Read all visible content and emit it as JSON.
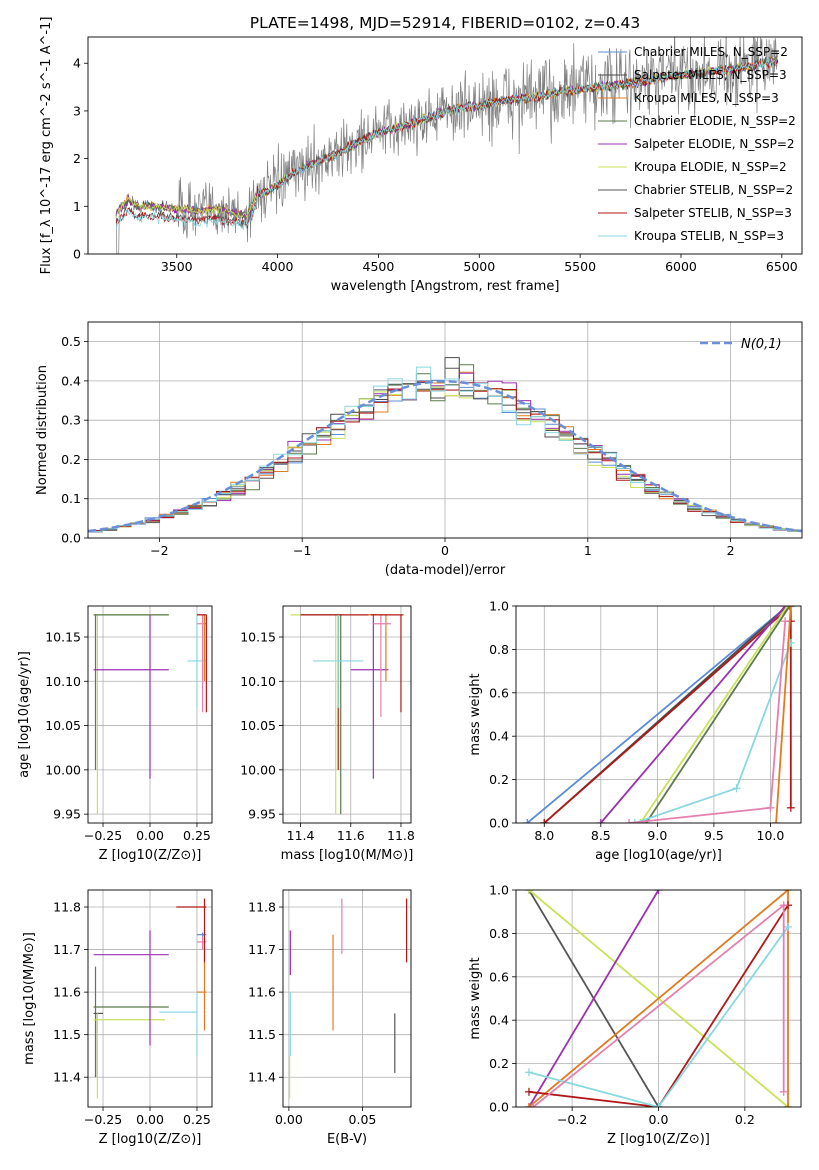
{
  "figure_title": "PLATE=1498, MJD=52914, FIBERID=0102, z=0.43",
  "colors": {
    "Chabrier MILES": "#5b8cd6",
    "Salpeter MILES": "#4a4a4a",
    "Kroupa MILES": "#e07b22",
    "Chabrier ELODIE": "#5a7a4a",
    "Salpeter ELODIE": "#9b30b0",
    "Kroupa ELODIE": "#c8e35a",
    "Chabrier STELIB": "#555555",
    "Salpeter STELIB": "#b01818",
    "Kroupa STELIB": "#88d8e0",
    "extra_pink": "#e57fb0",
    "grid": "#b0b0b0",
    "data": "#808080"
  },
  "chart_data": [
    {
      "id": "spectrum",
      "type": "line",
      "xlabel": "wavelength [Angstrom, rest frame]",
      "ylabel": "Flux [f_λ 10^-17 erg cm^-2 s^-1 A^-1]",
      "xlim": [
        3060,
        6600
      ],
      "ylim": [
        0,
        4.55
      ],
      "xticks": [
        3500,
        4000,
        4500,
        5000,
        5500,
        6000,
        6500
      ],
      "yticks": [
        0,
        1,
        2,
        3,
        4
      ],
      "grid": false,
      "legend_position": "top-right",
      "series": [
        {
          "name": "Chabrier MILES, N_SSP=2",
          "model": "Chabrier MILES"
        },
        {
          "name": "Salpeter MILES, N_SSP=3",
          "model": "Salpeter MILES"
        },
        {
          "name": "Kroupa MILES, N_SSP=3",
          "model": "Kroupa MILES"
        },
        {
          "name": "Chabrier ELODIE, N_SSP=2",
          "model": "Chabrier ELODIE"
        },
        {
          "name": "Salpeter ELODIE, N_SSP=2",
          "model": "Salpeter ELODIE"
        },
        {
          "name": "Kroupa ELODIE, N_SSP=2",
          "model": "Kroupa ELODIE"
        },
        {
          "name": "Chabrier STELIB, N_SSP=2",
          "model": "Chabrier STELIB"
        },
        {
          "name": "Salpeter STELIB, N_SSP=3",
          "model": "Salpeter STELIB"
        },
        {
          "name": "Kroupa STELIB, N_SSP=3",
          "model": "Kroupa STELIB"
        }
      ],
      "continuum": {
        "x": [
          3200,
          3260,
          3300,
          3400,
          3500,
          3600,
          3700,
          3800,
          3850,
          3900,
          3950,
          4000,
          4100,
          4200,
          4300,
          4400,
          4500,
          4600,
          4700,
          4800,
          4900,
          5000,
          5100,
          5200,
          5300,
          5400,
          5500,
          5600,
          5700,
          5800,
          5900,
          6000,
          6100,
          6200,
          6300,
          6400,
          6480
        ],
        "y": [
          0.85,
          1.15,
          1.0,
          1.0,
          0.95,
          0.9,
          0.95,
          0.85,
          0.8,
          1.3,
          1.3,
          1.45,
          1.75,
          1.95,
          2.1,
          2.35,
          2.55,
          2.65,
          2.8,
          2.95,
          3.05,
          3.1,
          3.2,
          3.25,
          3.3,
          3.4,
          3.45,
          3.5,
          3.55,
          3.6,
          3.7,
          3.75,
          3.8,
          3.85,
          3.9,
          4.0,
          4.05
        ]
      },
      "data_noise_ranges": [
        {
          "x": [
            3200,
            3500
          ],
          "amp": 0.15
        },
        {
          "x": [
            3500,
            4000
          ],
          "amp": 0.6
        },
        {
          "x": [
            4000,
            5000
          ],
          "amp": 0.6
        },
        {
          "x": [
            5000,
            6500
          ],
          "amp": 0.8
        }
      ]
    },
    {
      "id": "residuals",
      "type": "histogram",
      "xlabel": "(data-model)/error",
      "ylabel": "Normed distribution",
      "xlim": [
        -2.5,
        2.5
      ],
      "ylim": [
        0,
        0.55
      ],
      "xticks": [
        -2,
        -1,
        0,
        1,
        2
      ],
      "yticks": [
        0.0,
        0.1,
        0.2,
        0.3,
        0.4,
        0.5
      ],
      "grid": true,
      "legend_position": "top-right",
      "legend": [
        "N(0,1)"
      ],
      "reference_curve": "standard normal pdf, dashed",
      "bins": {
        "start": -2.5,
        "width": 0.1,
        "count": 50
      },
      "profile_values": [
        0.018,
        0.022,
        0.028,
        0.036,
        0.045,
        0.055,
        0.066,
        0.079,
        0.093,
        0.109,
        0.127,
        0.147,
        0.168,
        0.19,
        0.213,
        0.237,
        0.261,
        0.286,
        0.31,
        0.332,
        0.352,
        0.369,
        0.383,
        0.393,
        0.399,
        0.399,
        0.393,
        0.383,
        0.369,
        0.352,
        0.332,
        0.31,
        0.286,
        0.261,
        0.237,
        0.213,
        0.19,
        0.168,
        0.147,
        0.127,
        0.109,
        0.093,
        0.079,
        0.066,
        0.055,
        0.045,
        0.036,
        0.028,
        0.022,
        0.018
      ]
    },
    {
      "id": "age_vs_Z",
      "type": "scatter",
      "xlabel": "Z [log10(Z/Z⊙)]",
      "ylabel": "age [log10(age/yr)]",
      "xlim": [
        -0.33,
        0.33
      ],
      "ylim": [
        9.94,
        10.185
      ],
      "xticks": [
        -0.25,
        0.0,
        0.25
      ],
      "yticks": [
        9.95,
        10.0,
        10.05,
        10.1,
        10.15
      ],
      "grid": true,
      "errorbars": [
        {
          "model": "Kroupa ELODIE",
          "x": -0.28,
          "y": 10.175,
          "xl": -0.3,
          "xh": 0.1,
          "yl": 9.95,
          "yh": 10.175
        },
        {
          "model": "Chabrier ELODIE",
          "x": -0.29,
          "y": 10.175,
          "xl": -0.3,
          "xh": 0.1,
          "yl": 10.0,
          "yh": 10.175
        },
        {
          "model": "Salpeter ELODIE",
          "x": 0.0,
          "y": 10.113,
          "xl": -0.3,
          "xh": 0.1,
          "yl": 9.99,
          "yh": 10.175
        },
        {
          "model": "Kroupa STELIB",
          "x": 0.25,
          "y": 10.123,
          "xl": 0.2,
          "xh": 0.3,
          "yl": 10.07,
          "yh": 10.175
        },
        {
          "model": "extra_pink",
          "x": 0.28,
          "y": 10.165,
          "xl": 0.25,
          "xh": 0.3,
          "yl": 10.065,
          "yh": 10.175
        },
        {
          "model": "Kroupa MILES",
          "x": 0.29,
          "y": 10.175,
          "xl": 0.25,
          "xh": 0.3,
          "yl": 10.1,
          "yh": 10.175
        },
        {
          "model": "Salpeter STELIB",
          "x": 0.3,
          "y": 10.175,
          "xl": 0.25,
          "xh": 0.3,
          "yl": 10.065,
          "yh": 10.175
        }
      ]
    },
    {
      "id": "age_vs_mass",
      "type": "scatter",
      "xlabel": "mass [log10(M/M⊙)]",
      "ylabel": "",
      "xlim": [
        11.33,
        11.84
      ],
      "ylim": [
        9.94,
        10.185
      ],
      "xticks": [
        11.4,
        11.6,
        11.8
      ],
      "yticks": [
        9.95,
        10.0,
        10.05,
        10.1,
        10.15
      ],
      "grid": true,
      "errorbars": [
        {
          "model": "Kroupa ELODIE",
          "x": 11.54,
          "y": 10.175,
          "xl": 11.36,
          "xh": 11.55,
          "yl": 9.95,
          "yh": 10.175
        },
        {
          "model": "Chabrier ELODIE",
          "x": 11.56,
          "y": 10.175,
          "xl": 11.4,
          "xh": 11.57,
          "yl": 9.95,
          "yh": 10.175
        },
        {
          "model": "Salpeter STELIB",
          "x": 11.55,
          "y": 10.175,
          "xl": 11.4,
          "xh": 11.7,
          "yl": 10.0,
          "yh": 10.175
        },
        {
          "model": "Salpeter ELODIE",
          "x": 11.69,
          "y": 10.113,
          "xl": 11.6,
          "xh": 11.75,
          "yl": 9.99,
          "yh": 10.175
        },
        {
          "model": "Kroupa STELIB",
          "x": 11.55,
          "y": 10.123,
          "xl": 11.45,
          "xh": 11.65,
          "yl": 10.07,
          "yh": 10.175
        },
        {
          "model": "Kroupa MILES",
          "x": 11.74,
          "y": 10.175,
          "xl": 11.67,
          "xh": 11.76,
          "yl": 10.1,
          "yh": 10.175
        },
        {
          "model": "extra_pink",
          "x": 11.72,
          "y": 10.165,
          "xl": 11.69,
          "xh": 11.76,
          "yl": 10.06,
          "yh": 10.175
        },
        {
          "model": "Salpeter STELIB",
          "x": 11.8,
          "y": 10.175,
          "xl": 11.68,
          "xh": 11.81,
          "yl": 10.065,
          "yh": 10.175
        }
      ]
    },
    {
      "id": "weight_vs_age",
      "type": "line",
      "xlabel": "age [log10(age/yr)]",
      "ylabel": "mass weight",
      "xlim": [
        7.75,
        10.27
      ],
      "ylim": [
        0,
        1
      ],
      "xticks": [
        8.0,
        8.5,
        9.0,
        9.5,
        10.0
      ],
      "yticks": [
        0.0,
        0.2,
        0.4,
        0.6,
        0.8,
        1.0
      ],
      "grid": true,
      "series": [
        {
          "model": "Chabrier MILES",
          "x": [
            7.85,
            10.15
          ],
          "y": [
            0.0,
            1.0
          ]
        },
        {
          "model": "Salpeter MILES",
          "x": [
            8.0,
            10.15
          ],
          "y": [
            0.0,
            1.0
          ]
        },
        {
          "model": "Salpeter STELIB",
          "x": [
            8.0,
            10.18,
            10.18,
            10.18
          ],
          "y": [
            0.0,
            1.0,
            0.93,
            0.07
          ]
        },
        {
          "model": "Salpeter ELODIE",
          "x": [
            8.5,
            10.13
          ],
          "y": [
            0.0,
            1.0
          ]
        },
        {
          "model": "Kroupa ELODIE",
          "x": [
            8.85,
            10.15
          ],
          "y": [
            0.0,
            1.0
          ]
        },
        {
          "model": "Chabrier ELODIE",
          "x": [
            8.9,
            10.17
          ],
          "y": [
            0.0,
            1.0
          ]
        },
        {
          "model": "Kroupa STELIB",
          "x": [
            8.8,
            9.7,
            10.18
          ],
          "y": [
            0.0,
            0.16,
            0.83
          ]
        },
        {
          "model": "extra_pink",
          "x": [
            8.75,
            10.0,
            10.13
          ],
          "y": [
            0.0,
            0.07,
            0.93
          ]
        },
        {
          "model": "Kroupa MILES",
          "x": [
            10.05,
            10.18
          ],
          "y": [
            0.0,
            1.0
          ]
        }
      ]
    },
    {
      "id": "mass_vs_Z",
      "type": "scatter",
      "xlabel": "Z [log10(Z/Z⊙)]",
      "ylabel": "mass [log10(M/M⊙)]",
      "xlim": [
        -0.33,
        0.33
      ],
      "ylim": [
        11.33,
        11.84
      ],
      "xticks": [
        -0.25,
        0.0,
        0.25
      ],
      "yticks": [
        11.4,
        11.5,
        11.6,
        11.7,
        11.8
      ],
      "grid": true,
      "errorbars": [
        {
          "model": "Chabrier ELODIE",
          "x": -0.29,
          "y": 11.565,
          "xl": -0.3,
          "xh": 0.1,
          "yl": 11.4,
          "yh": 11.66
        },
        {
          "model": "Chabrier STELIB",
          "x": -0.28,
          "y": 11.55,
          "xl": -0.3,
          "xh": -0.25,
          "yl": 11.4,
          "yh": 11.55
        },
        {
          "model": "Kroupa ELODIE",
          "x": -0.28,
          "y": 11.535,
          "xl": -0.3,
          "xh": 0.08,
          "yl": 11.35,
          "yh": 11.55
        },
        {
          "model": "Salpeter ELODIE",
          "x": 0.0,
          "y": 11.688,
          "xl": -0.3,
          "xh": 0.1,
          "yl": 11.475,
          "yh": 11.745
        },
        {
          "model": "Kroupa STELIB",
          "x": 0.25,
          "y": 11.553,
          "xl": 0.05,
          "xh": 0.25,
          "yl": 11.45,
          "yh": 11.6
        },
        {
          "model": "Kroupa MILES",
          "x": 0.29,
          "y": 11.6,
          "xl": 0.25,
          "xh": 0.3,
          "yl": 11.51,
          "yh": 11.695
        },
        {
          "model": "Chabrier MILES",
          "x": 0.28,
          "y": 11.735,
          "xl": 0.25,
          "xh": 0.3,
          "yl": 11.73,
          "yh": 11.74
        },
        {
          "model": "extra_pink",
          "x": 0.28,
          "y": 11.718,
          "xl": 0.25,
          "xh": 0.3,
          "yl": 11.7,
          "yh": 11.73
        },
        {
          "model": "Salpeter STELIB",
          "x": 0.29,
          "y": 11.8,
          "xl": 0.14,
          "xh": 0.3,
          "yl": 11.67,
          "yh": 11.82
        }
      ]
    },
    {
      "id": "mass_vs_ebv",
      "type": "scatter",
      "xlabel": "E(B-V)",
      "ylabel": "",
      "xlim": [
        -0.004,
        0.083
      ],
      "ylim": [
        11.33,
        11.84
      ],
      "xticks": [
        0.0,
        0.05
      ],
      "yticks": [
        11.4,
        11.5,
        11.6,
        11.7,
        11.8
      ],
      "grid": true,
      "errorbars": [
        {
          "model": "Salpeter ELODIE",
          "x": 0.001,
          "y": 11.69,
          "xl": 0.001,
          "xh": 0.001,
          "yl": 11.64,
          "yh": 11.745
        },
        {
          "model": "Kroupa STELIB",
          "x": 0.001,
          "y": 11.55,
          "xl": 0.001,
          "xh": 0.001,
          "yl": 11.45,
          "yh": 11.6
        },
        {
          "model": "Kroupa ELODIE",
          "x": 0.0005,
          "y": 11.4,
          "xl": 0.0005,
          "xh": 0.0005,
          "yl": 11.35,
          "yh": 11.45
        },
        {
          "model": "Kroupa MILES",
          "x": 0.03,
          "y": 11.62,
          "xl": 0.03,
          "xh": 0.03,
          "yl": 11.51,
          "yh": 11.735
        },
        {
          "model": "extra_pink",
          "x": 0.036,
          "y": 11.76,
          "xl": 0.036,
          "xh": 0.036,
          "yl": 11.69,
          "yh": 11.82
        },
        {
          "model": "Chabrier STELIB",
          "x": 0.072,
          "y": 11.48,
          "xl": 0.072,
          "xh": 0.072,
          "yl": 11.41,
          "yh": 11.55
        },
        {
          "model": "Salpeter STELIB",
          "x": 0.08,
          "y": 11.75,
          "xl": 0.08,
          "xh": 0.08,
          "yl": 11.67,
          "yh": 11.82
        }
      ]
    },
    {
      "id": "weight_vs_Z",
      "type": "line",
      "xlabel": "Z [log10(Z/Z⊙)]",
      "ylabel": "mass weight",
      "xlim": [
        -0.33,
        0.33
      ],
      "ylim": [
        0,
        1
      ],
      "xticks": [
        -0.2,
        0.0,
        0.2
      ],
      "yticks": [
        0.0,
        0.2,
        0.4,
        0.6,
        0.8,
        1.0
      ],
      "grid": true,
      "series": [
        {
          "model": "Chabrier STELIB",
          "x": [
            -0.3,
            0.0
          ],
          "y": [
            1.0,
            0.0
          ]
        },
        {
          "model": "Kroupa ELODIE",
          "x": [
            -0.3,
            0.3
          ],
          "y": [
            1.0,
            0.0
          ]
        },
        {
          "model": "Salpeter ELODIE",
          "x": [
            -0.3,
            0.0
          ],
          "y": [
            0.0,
            1.0
          ]
        },
        {
          "model": "Kroupa MILES",
          "x": [
            -0.3,
            0.3,
            0.3
          ],
          "y": [
            0.0,
            1.0,
            0.0
          ]
        },
        {
          "model": "Salpeter STELIB",
          "x": [
            -0.3,
            0.0,
            0.3
          ],
          "y": [
            0.07,
            0.0,
            0.93
          ]
        },
        {
          "model": "Kroupa STELIB",
          "x": [
            -0.3,
            0.0,
            0.3
          ],
          "y": [
            0.16,
            0.0,
            0.83
          ]
        },
        {
          "model": "extra_pink",
          "x": [
            -0.29,
            0.29,
            0.29
          ],
          "y": [
            0.0,
            0.93,
            0.07
          ]
        }
      ]
    }
  ]
}
